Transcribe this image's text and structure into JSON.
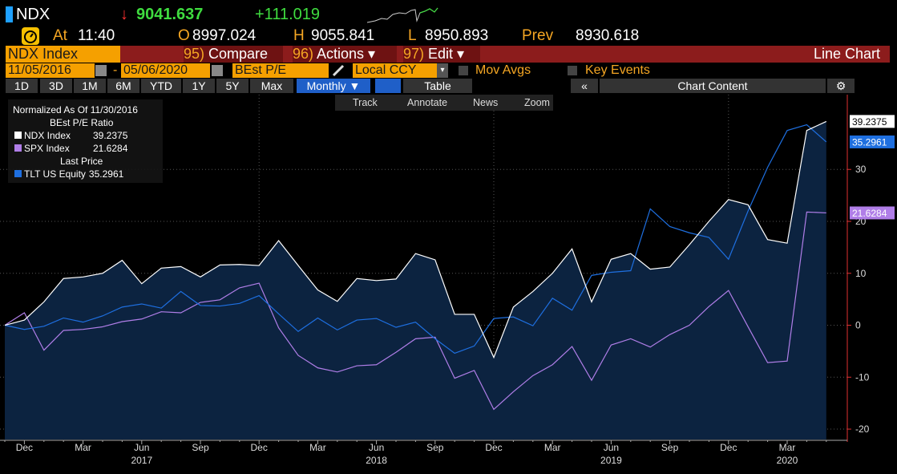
{
  "header": {
    "ticker": "NDX",
    "arrow": "↓",
    "last": "9041.637",
    "change": "+111.019",
    "at_label": "At",
    "time": "11:40",
    "open_label": "O",
    "open": "8997.024",
    "high_label": "H",
    "high": "9055.841",
    "low_label": "L",
    "low": "8950.893",
    "prev_label": "Prev",
    "prev": "8930.618"
  },
  "menu": {
    "security": "NDX Index",
    "items": [
      {
        "num": "95)",
        "label": "Compare"
      },
      {
        "num": "96)",
        "label": "Actions ▾"
      },
      {
        "num": "97)",
        "label": "Edit ▾"
      }
    ],
    "view": "Line Chart"
  },
  "settings": {
    "start": "11/05/2016",
    "dash": "-",
    "end": "05/06/2020",
    "field": "BEst P/E",
    "currency": "Local CCY",
    "mov_avgs": "Mov Avgs",
    "key_events": "Key Events"
  },
  "toolbar": {
    "ranges": [
      "1D",
      "3D",
      "1M",
      "6M",
      "YTD",
      "1Y",
      "5Y",
      "Max"
    ],
    "period": "Monthly ▼",
    "table": "Table",
    "collapse": "«",
    "content": "Chart Content",
    "tools": [
      "Track",
      "Annotate",
      "News",
      "Zoom"
    ]
  },
  "chart_data": {
    "type": "line",
    "legend_title": "Normalized As Of 11/30/2016",
    "legend_headings": [
      "BEst P/E Ratio",
      "Last Price"
    ],
    "categories": [
      null,
      "Dec",
      null,
      null,
      "Mar",
      null,
      null,
      "Jun",
      null,
      null,
      "Sep",
      null,
      null,
      "Dec",
      null,
      null,
      "Mar",
      null,
      null,
      "Jun",
      null,
      null,
      "Sep",
      null,
      null,
      "Dec",
      null,
      null,
      "Mar",
      null,
      null,
      "Jun",
      null,
      null,
      "Sep",
      null,
      null,
      "Dec",
      null,
      null,
      "Mar",
      null,
      null
    ],
    "year_categories": [
      null,
      null,
      null,
      null,
      null,
      null,
      null,
      "2017",
      null,
      null,
      null,
      null,
      null,
      null,
      null,
      null,
      null,
      null,
      null,
      "2018",
      null,
      null,
      null,
      null,
      null,
      null,
      null,
      null,
      null,
      null,
      null,
      "2019",
      null,
      null,
      null,
      null,
      null,
      null,
      null,
      null,
      "2020",
      null,
      null
    ],
    "series": [
      {
        "name": "NDX Index",
        "color": "#ffffff",
        "fill": "#0c2340",
        "values": [
          0,
          1,
          4.5,
          9,
          9.3,
          10,
          12.5,
          8,
          11,
          11.3,
          9.3,
          11.6,
          11.7,
          11.5,
          16.3,
          11.5,
          6.8,
          4.6,
          9,
          8.6,
          8.9,
          13.8,
          12.6,
          2.1,
          2.1,
          -6.2,
          3.5,
          6.5,
          10,
          14.7,
          4.5,
          12.7,
          13.8,
          10.8,
          11.2,
          15.5,
          20,
          24.2,
          23.2,
          16.5,
          15.8,
          37.5,
          39.2375
        ]
      },
      {
        "name": "SPX Index",
        "color": "#b07ee8",
        "values": [
          0,
          2.4,
          -4.8,
          -1,
          -0.8,
          -0.3,
          0.7,
          1.2,
          2.6,
          2.4,
          4.4,
          4.9,
          7.2,
          8.1,
          -0.5,
          -5.8,
          -8.2,
          -9,
          -7.8,
          -7.6,
          -5.2,
          -2.6,
          -2.3,
          -10.2,
          -8.7,
          -16.2,
          -12.8,
          -9.7,
          -7.6,
          -4.1,
          -10.6,
          -3.8,
          -2.6,
          -4.2,
          -1.8,
          0,
          3.6,
          6.7,
          -0.3,
          -7.2,
          -6.9,
          21.8,
          21.6284
        ]
      },
      {
        "name": "TLT US Equity",
        "color": "#1e6fe0",
        "values": [
          0,
          -0.8,
          -0.2,
          1.4,
          0.6,
          1.8,
          3.5,
          4.1,
          3.3,
          6.5,
          3.8,
          3.7,
          4.2,
          5.7,
          2.2,
          -1.2,
          1.4,
          -0.9,
          1,
          1.3,
          -0.4,
          0.6,
          -2.6,
          -5.4,
          -4,
          1.3,
          1.6,
          -0.1,
          5.2,
          2.9,
          9.6,
          10.2,
          10.5,
          22.4,
          19,
          17.8,
          16.9,
          12.7,
          22,
          30.4,
          37.5,
          38.6,
          35.2961
        ]
      }
    ],
    "ylim": [
      -22,
      41
    ],
    "yticks": [
      -20,
      -10,
      0,
      10,
      20,
      30
    ],
    "grid": true
  }
}
